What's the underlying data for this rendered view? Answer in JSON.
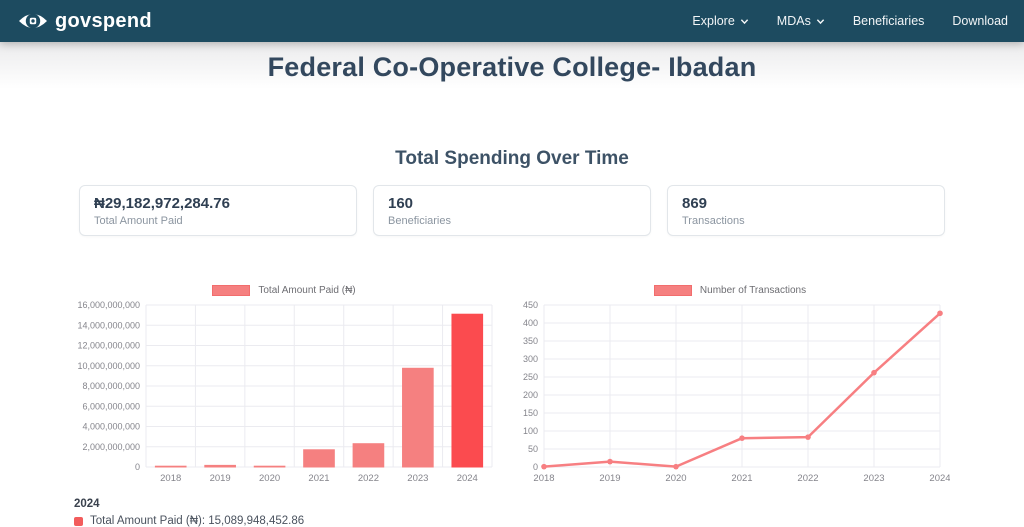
{
  "navbar": {
    "brand": "govspend",
    "items": [
      {
        "label": "Explore",
        "has_dropdown": true
      },
      {
        "label": "MDAs",
        "has_dropdown": true
      },
      {
        "label": "Beneficiaries",
        "has_dropdown": false
      },
      {
        "label": "Download",
        "has_dropdown": false
      }
    ]
  },
  "page": {
    "title": "Federal Co-Operative College- Ibadan",
    "section_title": "Total Spending Over Time"
  },
  "stats": [
    {
      "value": "₦29,182,972,284.76",
      "label": "Total Amount Paid"
    },
    {
      "value": "160",
      "label": "Beneficiaries"
    },
    {
      "value": "869",
      "label": "Transactions"
    }
  ],
  "chart_data": [
    {
      "type": "bar",
      "legend_label": "Total Amount Paid (₦)",
      "categories": [
        "2018",
        "2019",
        "2020",
        "2021",
        "2022",
        "2023",
        "2024"
      ],
      "values": [
        15000000,
        160000000,
        12000000,
        1700000000,
        2300000000,
        9750000000,
        15089948452.86
      ],
      "ylim": [
        0,
        16000000000
      ],
      "ytick_step": 2000000000,
      "grid": true,
      "legend_position": "top",
      "highlight_index": 6
    },
    {
      "type": "line",
      "legend_label": "Number of Transactions",
      "categories": [
        "2018",
        "2019",
        "2020",
        "2021",
        "2022",
        "2023",
        "2024"
      ],
      "values": [
        1,
        15,
        1,
        80,
        83,
        262,
        427
      ],
      "ylim": [
        0,
        450
      ],
      "ytick_step": 50,
      "grid": true,
      "legend_position": "top"
    }
  ],
  "bar_tooltip": {
    "year": "2024",
    "text": "Total Amount Paid (₦): 15,089,948,452.86"
  },
  "colors": {
    "navbar_bg": "#1d4b60",
    "title_text": "#33485e",
    "bar_fill": "#f58080",
    "bar_highlight": "#fb4b4f",
    "line_stroke": "#f77f82",
    "grid_line": "#ebebf0",
    "axis_text": "#85858c",
    "tooltip_swatch": "#f25c5c"
  }
}
